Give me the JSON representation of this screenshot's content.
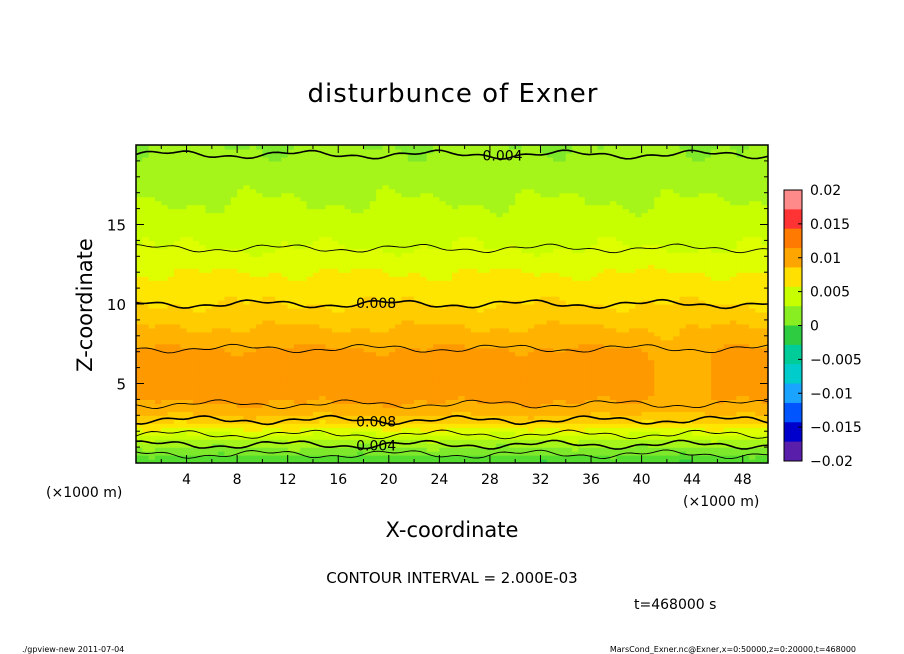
{
  "chart_data": {
    "type": "heatmap",
    "title": "disturbunce of Exner",
    "xlabel": "X-coordinate",
    "ylabel": "Z-coordinate",
    "x_unit": "(×1000 m)",
    "y_unit": "(×1000 m)",
    "xlim": [
      0,
      50
    ],
    "ylim": [
      0,
      20
    ],
    "x_ticks": [
      "4",
      "8",
      "12",
      "16",
      "20",
      "24",
      "28",
      "32",
      "36",
      "40",
      "44",
      "48"
    ],
    "y_ticks": [
      "5",
      "10",
      "15"
    ],
    "contour_interval": "CONTOUR INTERVAL = 2.000E-03",
    "time_label": "t=468000 s",
    "colorbar": {
      "labels": [
        "0.02",
        "0.015",
        "0.01",
        "0.005",
        "0",
        "−0.005",
        "−0.01",
        "−0.015",
        "−0.02"
      ],
      "range": [
        -0.02,
        0.02
      ]
    },
    "contour_labels": [
      {
        "text": "0.004",
        "x": 29,
        "z": 19.35
      },
      {
        "text": "0.008",
        "x": 19,
        "z": 10.05
      },
      {
        "text": "0.008",
        "x": 19,
        "z": 2.6
      },
      {
        "text": "0.004",
        "x": 19,
        "z": 1.1
      }
    ],
    "profile_z": [
      0,
      0.5,
      1,
      1.5,
      2,
      2.5,
      3,
      3.5,
      4,
      5,
      6,
      7,
      8,
      9,
      10,
      11,
      12,
      13.5,
      15,
      16.5,
      18,
      20
    ],
    "profile_values": [
      0.002,
      0.003,
      0.004,
      0.005,
      0.0065,
      0.008,
      0.009,
      0.0097,
      0.0102,
      0.0105,
      0.0105,
      0.0102,
      0.0094,
      0.0087,
      0.008,
      0.0075,
      0.007,
      0.006,
      0.0055,
      0.005,
      0.0045,
      0.004
    ]
  },
  "footer": {
    "left": "./gpview-new  2011-07-04",
    "right": "MarsCond_Exner.nc@Exner,x=0:50000,z=0:20000,t=468000"
  },
  "colors": {
    "scale": [
      "#ff8a8a",
      "#ff3333",
      "#ff7a00",
      "#ffa500",
      "#ffe000",
      "#c8ff00",
      "#88ee22",
      "#2ecc40",
      "#00cc99",
      "#00cccc",
      "#1aa3ff",
      "#0055ff",
      "#0000cc",
      "#5a1faa"
    ]
  }
}
